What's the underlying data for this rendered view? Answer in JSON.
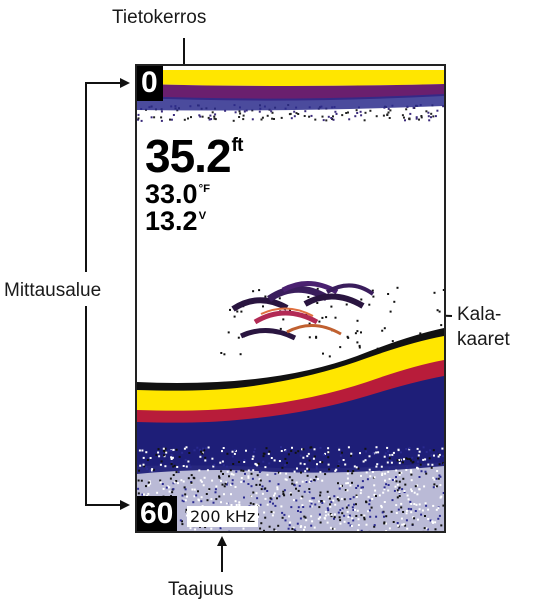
{
  "labels": {
    "data_layer": "Tietokerros",
    "range": "Mittausalue",
    "fish_arcs": "Kala-\nkaaret",
    "frequency": "Taajuus"
  },
  "screen": {
    "range_top": "0",
    "range_bottom": "60",
    "frequency": "200 kHz",
    "depth": {
      "value": "35.2",
      "unit": "ft"
    },
    "temperature": {
      "value": "33.0",
      "unit": "°F"
    },
    "voltage": {
      "value": "13.2",
      "unit": "V"
    }
  },
  "colors": {
    "bottom_return": "#ffe600",
    "mid_return": "#c02060",
    "deep_return": "#1e1e78",
    "frame": "#222222"
  }
}
